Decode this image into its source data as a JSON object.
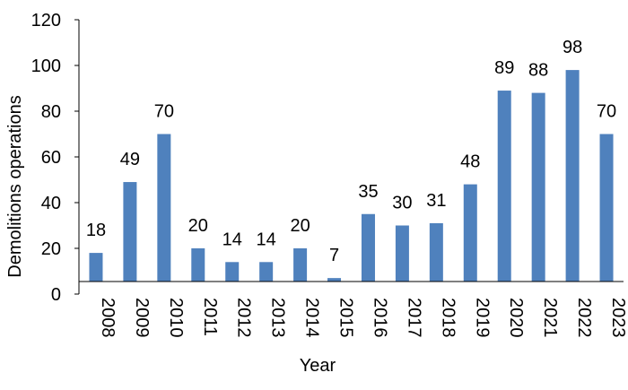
{
  "colors": {
    "bar": "#4f81bd",
    "axis": "#000000",
    "text": "#000000"
  },
  "chart_data": {
    "type": "bar",
    "title": "",
    "xlabel": "Year",
    "ylabel": "Demolitions operations",
    "categories": [
      "2008",
      "2009",
      "2010",
      "2011",
      "2012",
      "2013",
      "2014",
      "2015",
      "2016",
      "2017",
      "2018",
      "2019",
      "2020",
      "2021",
      "2022",
      "2023"
    ],
    "values": [
      18,
      49,
      70,
      20,
      14,
      14,
      20,
      7,
      35,
      30,
      31,
      48,
      89,
      88,
      98,
      70
    ],
    "data_labels": [
      "18",
      "49",
      "70",
      "20",
      "14",
      "14",
      "20",
      "7",
      "35",
      "30",
      "31",
      "48",
      "89",
      "88",
      "98",
      "70"
    ],
    "yticks": [
      0,
      20,
      40,
      60,
      80,
      100,
      120
    ],
    "ytick_labels": [
      "0",
      "20",
      "40",
      "60",
      "80",
      "100",
      "120"
    ],
    "ylim": [
      0,
      120
    ],
    "grid": false,
    "legend": "none"
  }
}
